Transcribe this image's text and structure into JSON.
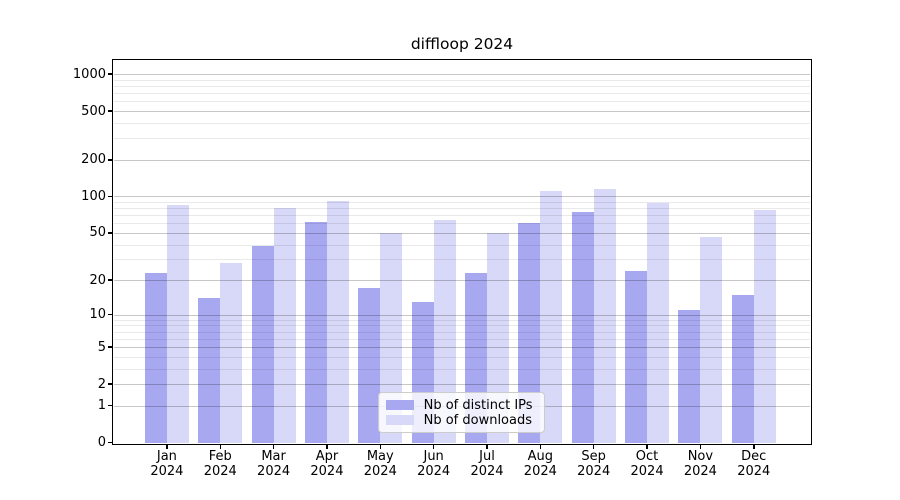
{
  "title": "diffloop 2024",
  "chart_data": {
    "type": "bar",
    "title": "diffloop 2024",
    "x_months": [
      "Jan",
      "Feb",
      "Mar",
      "Apr",
      "May",
      "Jun",
      "Jul",
      "Aug",
      "Sep",
      "Oct",
      "Nov",
      "Dec"
    ],
    "x_year": "2024",
    "series": [
      {
        "name": "Nb of distinct IPs",
        "color": "#a8a8f0",
        "values": [
          23,
          14,
          39,
          62,
          17,
          13,
          23,
          60,
          75,
          24,
          11,
          15
        ]
      },
      {
        "name": "Nb of downloads",
        "color": "#d8d8f8",
        "values": [
          85,
          28,
          80,
          92,
          50,
          64,
          50,
          110,
          115,
          89,
          46,
          78
        ]
      }
    ],
    "yscale": "log1p",
    "ylim": [
      0,
      1300
    ],
    "y_ticks": [
      0,
      1,
      2,
      5,
      10,
      20,
      50,
      100,
      200,
      500,
      1000
    ],
    "y_minor_ticks": [
      3,
      4,
      6,
      7,
      8,
      9,
      30,
      40,
      60,
      70,
      80,
      90,
      300,
      400,
      600,
      700,
      800,
      900
    ],
    "grid": true,
    "legend_position": "lower center",
    "bar_group": "two bars per month, distinct IPs left, downloads right"
  }
}
